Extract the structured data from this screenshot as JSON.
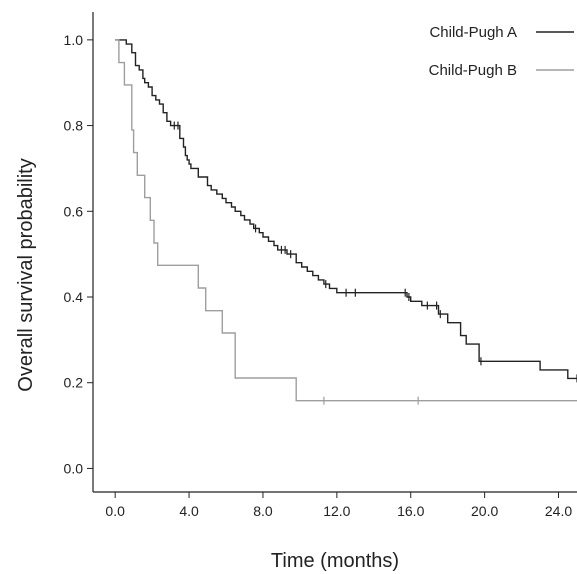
{
  "chart_data": {
    "type": "line",
    "xlabel": "Time (months)",
    "ylabel": "Overall survival probability",
    "xlim": [
      -1.2,
      25
    ],
    "ylim": [
      -0.055,
      1.065
    ],
    "xticks": [
      0,
      4,
      8,
      12,
      16,
      20,
      24
    ],
    "xtick_labels": [
      "0.0",
      "4.0",
      "8.0",
      "12.0",
      "16.0",
      "20.0",
      "24.0"
    ],
    "yticks": [
      0,
      0.2,
      0.4,
      0.6,
      0.8,
      1.0
    ],
    "ytick_labels": [
      "0.0",
      "0.2",
      "0.4",
      "0.6",
      "0.8",
      "1.0"
    ],
    "grid": false,
    "legend_position": "top-right",
    "series": [
      {
        "name": "Child-Pugh A",
        "color": "#222222",
        "step": true,
        "x": [
          0,
          0.6,
          0.9,
          1.1,
          1.3,
          1.5,
          1.6,
          1.8,
          2.0,
          2.2,
          2.4,
          2.6,
          2.8,
          3.0,
          3.5,
          3.7,
          3.8,
          3.9,
          4.0,
          4.1,
          4.5,
          5.0,
          5.2,
          5.5,
          5.8,
          6.0,
          6.3,
          6.5,
          6.8,
          7.0,
          7.3,
          7.5,
          7.8,
          8.0,
          8.3,
          8.6,
          8.8,
          9.3,
          9.8,
          10.1,
          10.4,
          10.7,
          11.0,
          11.3,
          11.6,
          12.0,
          13.0,
          15.8,
          16.0,
          16.6,
          17.5,
          18.0,
          18.7,
          19.0,
          19.7,
          21.0,
          23.0,
          24.5,
          25.0
        ],
        "y": [
          1.0,
          0.99,
          0.97,
          0.94,
          0.93,
          0.91,
          0.9,
          0.89,
          0.87,
          0.86,
          0.85,
          0.83,
          0.81,
          0.8,
          0.77,
          0.75,
          0.73,
          0.72,
          0.71,
          0.7,
          0.68,
          0.66,
          0.65,
          0.64,
          0.63,
          0.62,
          0.61,
          0.6,
          0.59,
          0.58,
          0.57,
          0.56,
          0.55,
          0.54,
          0.53,
          0.52,
          0.51,
          0.5,
          0.48,
          0.47,
          0.46,
          0.45,
          0.44,
          0.43,
          0.42,
          0.41,
          0.41,
          0.4,
          0.39,
          0.38,
          0.36,
          0.34,
          0.31,
          0.29,
          0.25,
          0.25,
          0.23,
          0.21,
          0.21
        ],
        "censor_x": [
          3.2,
          3.4,
          7.6,
          9.0,
          9.2,
          9.5,
          11.4,
          12.5,
          13.0,
          15.7,
          15.9,
          16.9,
          17.4,
          17.6,
          19.8,
          25.0
        ]
      },
      {
        "name": "Child-Pugh B",
        "color": "#9e9e9e",
        "step": true,
        "x": [
          0,
          0.2,
          0.5,
          0.9,
          1.0,
          1.2,
          1.6,
          1.9,
          2.1,
          2.3,
          4.5,
          4.9,
          5.8,
          6.5,
          9.8,
          25.0
        ],
        "y": [
          1.0,
          0.947,
          0.895,
          0.79,
          0.737,
          0.684,
          0.632,
          0.579,
          0.526,
          0.474,
          0.421,
          0.368,
          0.316,
          0.211,
          0.158,
          0.158
        ],
        "censor_x": [
          11.3,
          16.4
        ]
      }
    ]
  }
}
